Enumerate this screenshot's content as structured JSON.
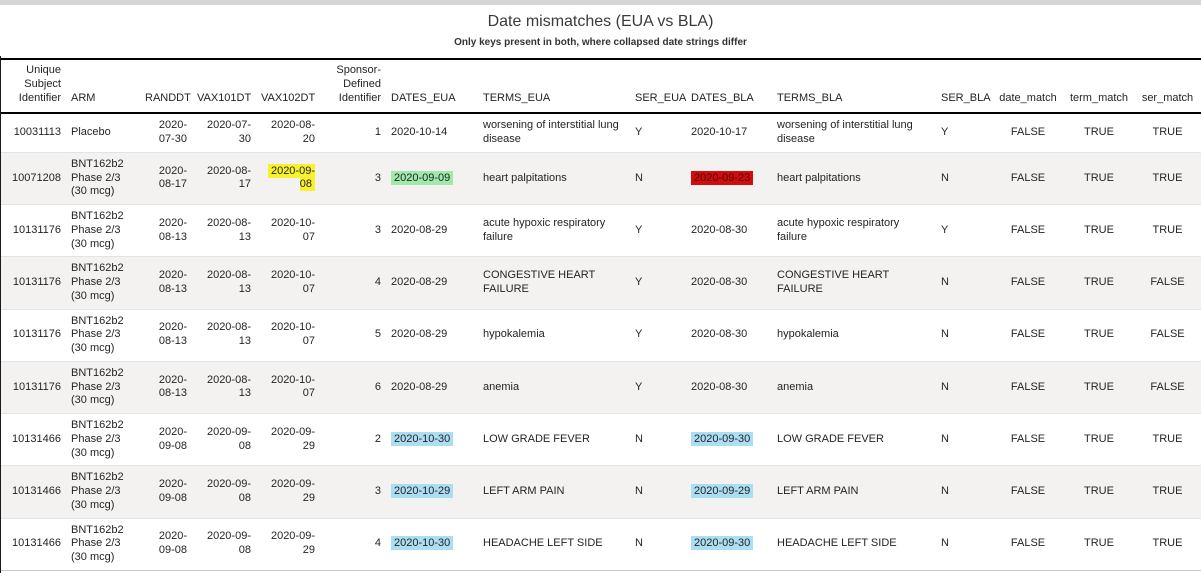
{
  "header": {
    "title": "Date mismatches (EUA vs BLA)",
    "subtitle": "Only keys present in both, where collapsed date strings differ"
  },
  "table": {
    "columns": [
      {
        "key": "usubjid",
        "label": "Unique Subject Identifier"
      },
      {
        "key": "arm",
        "label": "ARM"
      },
      {
        "key": "randdt",
        "label": "RANDDT"
      },
      {
        "key": "vax101dt",
        "label": "VAX101DT"
      },
      {
        "key": "vax102dt",
        "label": "VAX102DT"
      },
      {
        "key": "spid",
        "label": "Sponsor-Defined Identifier"
      },
      {
        "key": "dates_eua",
        "label": "DATES_EUA"
      },
      {
        "key": "terms_eua",
        "label": "TERMS_EUA"
      },
      {
        "key": "ser_eua",
        "label": "SER_EUA"
      },
      {
        "key": "dates_bla",
        "label": "DATES_BLA"
      },
      {
        "key": "terms_bla",
        "label": "TERMS_BLA"
      },
      {
        "key": "ser_bla",
        "label": "SER_BLA"
      },
      {
        "key": "date_match",
        "label": "date_match"
      },
      {
        "key": "term_match",
        "label": "term_match"
      },
      {
        "key": "ser_match",
        "label": "ser_match"
      }
    ],
    "highlight_styles": {
      "yellow": {
        "bg": "#f8f22e",
        "fg": "#252423"
      },
      "green": {
        "bg": "#9fe9ad",
        "fg": "#252423"
      },
      "red": {
        "bg": "#d40b0b",
        "fg": "#3c0b0b"
      },
      "blue": {
        "bg": "#abdef2",
        "fg": "#252423"
      }
    },
    "rows": [
      {
        "cells": {
          "usubjid": "10031113",
          "arm": "Placebo",
          "randdt": "2020-07-30",
          "vax101dt": "2020-07-30",
          "vax102dt": "2020-08-20",
          "spid": "1",
          "dates_eua": "2020-10-14",
          "terms_eua": "worsening of interstitial lung disease",
          "ser_eua": "Y",
          "dates_bla": "2020-10-17",
          "terms_bla": "worsening of interstitial lung disease",
          "ser_bla": "Y",
          "date_match": "FALSE",
          "term_match": "TRUE",
          "ser_match": "TRUE"
        },
        "highlights": {}
      },
      {
        "cells": {
          "usubjid": "10071208",
          "arm": "BNT162b2 Phase 2/3 (30 mcg)",
          "randdt": "2020-08-17",
          "vax101dt": "2020-08-17",
          "vax102dt": "2020-09-08",
          "spid": "3",
          "dates_eua": "2020-09-09",
          "terms_eua": "heart palpitations",
          "ser_eua": "N",
          "dates_bla": "2020-09-23",
          "terms_bla": "heart palpitations",
          "ser_bla": "N",
          "date_match": "FALSE",
          "term_match": "TRUE",
          "ser_match": "TRUE"
        },
        "highlights": {
          "vax102dt": "yellow",
          "dates_eua": "green",
          "dates_bla": "red"
        }
      },
      {
        "cells": {
          "usubjid": "10131176",
          "arm": "BNT162b2 Phase 2/3 (30 mcg)",
          "randdt": "2020-08-13",
          "vax101dt": "2020-08-13",
          "vax102dt": "2020-10-07",
          "spid": "3",
          "dates_eua": "2020-08-29",
          "terms_eua": "acute hypoxic respiratory failure",
          "ser_eua": "Y",
          "dates_bla": "2020-08-30",
          "terms_bla": "acute hypoxic respiratory failure",
          "ser_bla": "Y",
          "date_match": "FALSE",
          "term_match": "TRUE",
          "ser_match": "TRUE"
        },
        "highlights": {}
      },
      {
        "cells": {
          "usubjid": "10131176",
          "arm": "BNT162b2 Phase 2/3 (30 mcg)",
          "randdt": "2020-08-13",
          "vax101dt": "2020-08-13",
          "vax102dt": "2020-10-07",
          "spid": "4",
          "dates_eua": "2020-08-29",
          "terms_eua": "CONGESTIVE HEART FAILURE",
          "ser_eua": "Y",
          "dates_bla": "2020-08-30",
          "terms_bla": "CONGESTIVE HEART FAILURE",
          "ser_bla": "N",
          "date_match": "FALSE",
          "term_match": "TRUE",
          "ser_match": "FALSE"
        },
        "highlights": {}
      },
      {
        "cells": {
          "usubjid": "10131176",
          "arm": "BNT162b2 Phase 2/3 (30 mcg)",
          "randdt": "2020-08-13",
          "vax101dt": "2020-08-13",
          "vax102dt": "2020-10-07",
          "spid": "5",
          "dates_eua": "2020-08-29",
          "terms_eua": "hypokalemia",
          "ser_eua": "Y",
          "dates_bla": "2020-08-30",
          "terms_bla": "hypokalemia",
          "ser_bla": "N",
          "date_match": "FALSE",
          "term_match": "TRUE",
          "ser_match": "FALSE"
        },
        "highlights": {}
      },
      {
        "cells": {
          "usubjid": "10131176",
          "arm": "BNT162b2 Phase 2/3 (30 mcg)",
          "randdt": "2020-08-13",
          "vax101dt": "2020-08-13",
          "vax102dt": "2020-10-07",
          "spid": "6",
          "dates_eua": "2020-08-29",
          "terms_eua": "anemia",
          "ser_eua": "Y",
          "dates_bla": "2020-08-30",
          "terms_bla": "anemia",
          "ser_bla": "N",
          "date_match": "FALSE",
          "term_match": "TRUE",
          "ser_match": "FALSE"
        },
        "highlights": {}
      },
      {
        "cells": {
          "usubjid": "10131466",
          "arm": "BNT162b2 Phase 2/3 (30 mcg)",
          "randdt": "2020-09-08",
          "vax101dt": "2020-09-08",
          "vax102dt": "2020-09-29",
          "spid": "2",
          "dates_eua": "2020-10-30",
          "terms_eua": "LOW GRADE FEVER",
          "ser_eua": "N",
          "dates_bla": "2020-09-30",
          "terms_bla": "LOW GRADE FEVER",
          "ser_bla": "N",
          "date_match": "FALSE",
          "term_match": "TRUE",
          "ser_match": "TRUE"
        },
        "highlights": {
          "dates_eua": "blue",
          "dates_bla": "blue"
        }
      },
      {
        "cells": {
          "usubjid": "10131466",
          "arm": "BNT162b2 Phase 2/3 (30 mcg)",
          "randdt": "2020-09-08",
          "vax101dt": "2020-09-08",
          "vax102dt": "2020-09-29",
          "spid": "3",
          "dates_eua": "2020-10-29",
          "terms_eua": "LEFT ARM PAIN",
          "ser_eua": "N",
          "dates_bla": "2020-09-29",
          "terms_bla": "LEFT ARM PAIN",
          "ser_bla": "N",
          "date_match": "FALSE",
          "term_match": "TRUE",
          "ser_match": "TRUE"
        },
        "highlights": {
          "dates_eua": "blue",
          "dates_bla": "blue"
        }
      },
      {
        "cells": {
          "usubjid": "10131466",
          "arm": "BNT162b2 Phase 2/3 (30 mcg)",
          "randdt": "2020-09-08",
          "vax101dt": "2020-09-08",
          "vax102dt": "2020-09-29",
          "spid": "4",
          "dates_eua": "2020-10-30",
          "terms_eua": "HEADACHE LEFT SIDE",
          "ser_eua": "N",
          "dates_bla": "2020-09-30",
          "terms_bla": "HEADACHE LEFT SIDE",
          "ser_bla": "N",
          "date_match": "FALSE",
          "term_match": "TRUE",
          "ser_match": "TRUE"
        },
        "highlights": {
          "dates_eua": "blue",
          "dates_bla": "blue"
        }
      }
    ]
  }
}
